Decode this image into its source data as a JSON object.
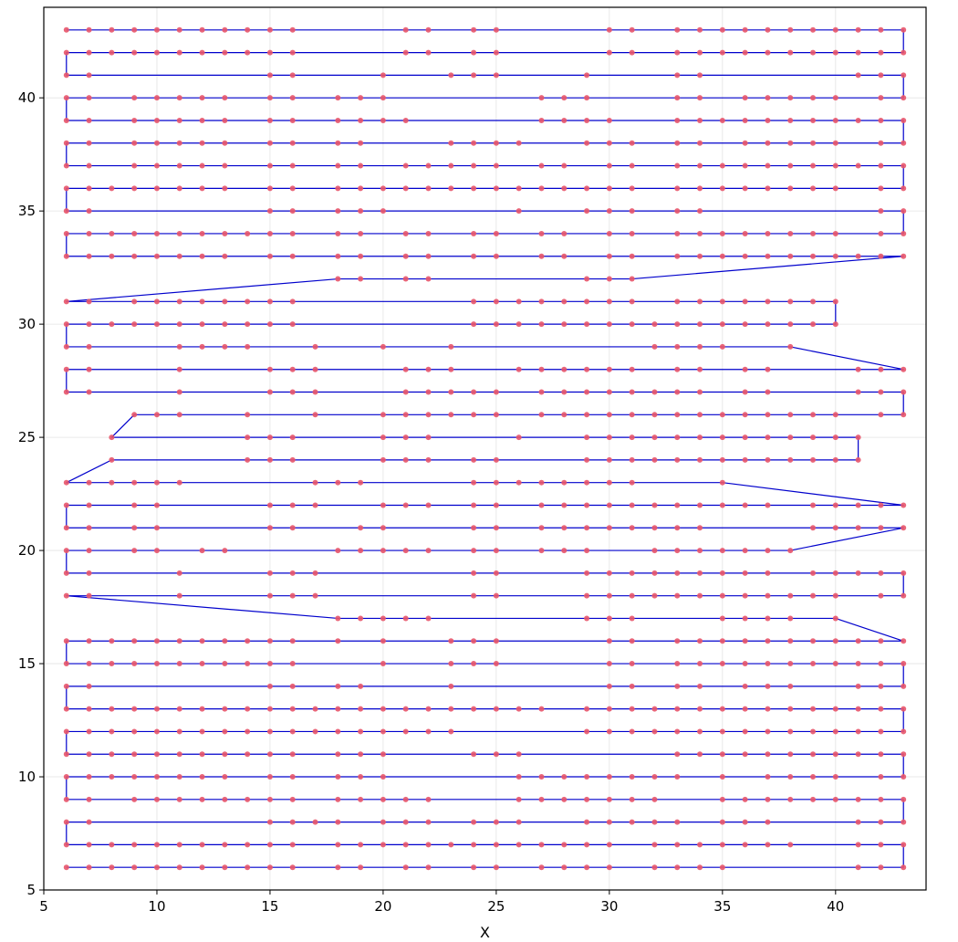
{
  "chart_data": {
    "type": "line",
    "title": "",
    "xlabel": "X",
    "ylabel": "",
    "xlim": [
      5,
      44
    ],
    "ylim": [
      5,
      44
    ],
    "xticks": [
      5,
      10,
      15,
      20,
      25,
      30,
      35,
      40
    ],
    "yticks": [
      5,
      10,
      15,
      20,
      25,
      30,
      35,
      40
    ],
    "grid": true,
    "legend": "none",
    "line_color": "#0000cc",
    "marker_color": "#e8556a",
    "rows": [
      {
        "y": 6,
        "x": [
          6,
          7,
          8,
          9,
          10,
          11,
          12,
          13,
          14,
          15,
          16,
          18,
          19,
          21,
          22,
          24,
          25,
          27,
          28,
          29,
          30,
          32,
          33,
          34,
          35,
          41,
          42,
          43
        ]
      },
      {
        "y": 7,
        "x": [
          43,
          42,
          41,
          38,
          37,
          36,
          35,
          34,
          33,
          32,
          30,
          29,
          28,
          27,
          26,
          25,
          24,
          23,
          22,
          21,
          20,
          19,
          18,
          16,
          15,
          14,
          13,
          12,
          11,
          10,
          9,
          8,
          7,
          6
        ]
      },
      {
        "y": 8,
        "x": [
          6,
          7,
          15,
          16,
          17,
          18,
          20,
          21,
          22,
          24,
          25,
          26,
          29,
          30,
          31,
          32,
          33,
          35,
          36,
          37,
          41,
          42,
          43
        ]
      },
      {
        "y": 9,
        "x": [
          43,
          42,
          41,
          40,
          39,
          38,
          37,
          36,
          35,
          32,
          31,
          30,
          29,
          28,
          27,
          26,
          22,
          21,
          20,
          19,
          18,
          16,
          15,
          14,
          13,
          12,
          11,
          10,
          9,
          7,
          6
        ]
      },
      {
        "y": 10,
        "x": [
          6,
          7,
          8,
          9,
          10,
          11,
          12,
          13,
          15,
          16,
          18,
          19,
          20,
          26,
          27,
          28,
          29,
          30,
          31,
          32,
          33,
          35,
          37,
          38,
          39,
          40,
          42,
          43
        ]
      },
      {
        "y": 11,
        "x": [
          43,
          42,
          41,
          40,
          39,
          38,
          37,
          36,
          35,
          34,
          33,
          26,
          25,
          24,
          20,
          19,
          18,
          16,
          15,
          14,
          13,
          12,
          11,
          10,
          9,
          8,
          7,
          6
        ]
      },
      {
        "y": 12,
        "x": [
          6,
          7,
          8,
          9,
          10,
          11,
          12,
          13,
          14,
          15,
          16,
          17,
          18,
          19,
          20,
          21,
          22,
          23,
          29,
          30,
          31,
          32,
          33,
          34,
          35,
          36,
          37,
          38,
          39,
          40,
          41,
          42,
          43
        ]
      },
      {
        "y": 13,
        "x": [
          43,
          42,
          41,
          40,
          39,
          38,
          37,
          36,
          35,
          34,
          33,
          32,
          31,
          30,
          29,
          27,
          26,
          25,
          24,
          23,
          22,
          21,
          20,
          19,
          18,
          17,
          16,
          15,
          14,
          13,
          12,
          11,
          10,
          9,
          8,
          7,
          6
        ]
      },
      {
        "y": 14,
        "x": [
          6,
          7,
          15,
          16,
          18,
          19,
          23,
          30,
          31,
          33,
          34,
          36,
          37,
          38,
          41,
          42,
          43
        ]
      },
      {
        "y": 15,
        "x": [
          43,
          42,
          41,
          40,
          39,
          38,
          37,
          36,
          35,
          34,
          33,
          31,
          30,
          25,
          24,
          23,
          20,
          16,
          15,
          14,
          13,
          12,
          11,
          10,
          9,
          8,
          7,
          6
        ]
      },
      {
        "y": 16,
        "x": [
          6,
          7,
          8,
          9,
          10,
          11,
          12,
          13,
          14,
          15,
          16,
          18,
          20,
          23,
          24,
          25,
          30,
          31,
          33,
          34,
          35,
          36,
          37,
          38,
          39,
          40,
          41,
          42,
          43
        ]
      },
      {
        "y": 17,
        "x": [
          40,
          38,
          37,
          36,
          35,
          31,
          30,
          29,
          22,
          21,
          20,
          19,
          18
        ]
      },
      {
        "y": 18,
        "x": [
          6,
          7,
          11,
          15,
          16,
          17,
          24,
          25,
          29,
          30,
          31,
          32,
          33,
          34,
          35,
          36,
          37,
          38,
          39,
          40,
          42,
          43
        ]
      },
      {
        "y": 19,
        "x": [
          43,
          42,
          41,
          40,
          39,
          37,
          36,
          35,
          34,
          33,
          32,
          31,
          30,
          29,
          25,
          24,
          17,
          16,
          15,
          11,
          7,
          6
        ]
      },
      {
        "y": 20,
        "x": [
          6,
          7,
          9,
          10,
          12,
          13,
          18,
          19,
          20,
          21,
          22,
          24,
          25,
          27,
          28,
          29,
          32,
          33,
          34,
          35,
          36,
          37,
          38
        ]
      },
      {
        "y": 21,
        "x": [
          43,
          42,
          41,
          40,
          39,
          34,
          33,
          32,
          31,
          30,
          29,
          28,
          27,
          25,
          24,
          20,
          19,
          16,
          15,
          10,
          9,
          7,
          6
        ]
      },
      {
        "y": 22,
        "x": [
          6,
          7,
          9,
          10,
          15,
          16,
          17,
          20,
          21,
          22,
          24,
          25,
          27,
          28,
          29,
          30,
          31,
          32,
          33,
          34,
          35,
          36,
          37,
          39,
          40,
          41,
          42,
          43
        ]
      },
      {
        "y": 23,
        "x": [
          35,
          31,
          30,
          29,
          28,
          27,
          26,
          25,
          24,
          19,
          18,
          17,
          11,
          10,
          9,
          8,
          7,
          6
        ]
      },
      {
        "y": 24,
        "x": [
          8,
          14,
          15,
          16,
          20,
          21,
          22,
          24,
          25,
          29,
          30,
          31,
          32,
          33,
          34,
          35,
          36,
          37,
          38,
          39,
          40,
          41
        ]
      },
      {
        "y": 25,
        "x": [
          41,
          40,
          39,
          38,
          37,
          36,
          35,
          34,
          33,
          32,
          31,
          30,
          29,
          26,
          22,
          21,
          20,
          16,
          15,
          14,
          8
        ]
      },
      {
        "y": 26,
        "x": [
          9,
          10,
          11,
          14,
          17,
          20,
          21,
          22,
          23,
          24,
          25,
          27,
          28,
          29,
          30,
          31,
          32,
          33,
          34,
          35,
          36,
          37,
          38,
          39,
          40,
          42,
          43
        ]
      },
      {
        "y": 27,
        "x": [
          43,
          42,
          41,
          37,
          36,
          34,
          33,
          32,
          31,
          30,
          29,
          28,
          27,
          25,
          24,
          23,
          22,
          21,
          17,
          16,
          15,
          11,
          7,
          6
        ]
      },
      {
        "y": 28,
        "x": [
          6,
          7,
          11,
          15,
          16,
          17,
          21,
          22,
          23,
          26,
          27,
          28,
          29,
          30,
          31,
          33,
          34,
          36,
          37,
          41,
          42,
          43
        ]
      },
      {
        "y": 29,
        "x": [
          38,
          35,
          34,
          33,
          32,
          23,
          20,
          17,
          14,
          13,
          12,
          11,
          7,
          6
        ]
      },
      {
        "y": 30,
        "x": [
          6,
          7,
          8,
          9,
          10,
          11,
          12,
          13,
          14,
          15,
          16,
          24,
          25,
          26,
          27,
          28,
          29,
          30,
          31,
          32,
          33,
          34,
          35,
          36,
          37,
          38,
          39,
          40
        ]
      },
      {
        "y": 31,
        "x": [
          40,
          39,
          38,
          37,
          36,
          35,
          34,
          33,
          31,
          30,
          29,
          28,
          27,
          26,
          25,
          24,
          16,
          15,
          14,
          13,
          12,
          11,
          10,
          9,
          7,
          6
        ]
      },
      {
        "y": 32,
        "x": [
          18,
          19,
          21,
          22,
          29,
          30,
          31
        ]
      },
      {
        "y": 33,
        "x": [
          43,
          42,
          41,
          40,
          39,
          38,
          37,
          36,
          35,
          34,
          33,
          31,
          30,
          28,
          27,
          25,
          24,
          22,
          21,
          19,
          18,
          16,
          15,
          13,
          12,
          11,
          10,
          9,
          8,
          7,
          6
        ]
      },
      {
        "y": 34,
        "x": [
          6,
          7,
          8,
          9,
          10,
          11,
          12,
          13,
          14,
          15,
          16,
          18,
          19,
          21,
          22,
          24,
          25,
          27,
          28,
          30,
          31,
          33,
          34,
          35,
          36,
          37,
          38,
          39,
          40,
          42,
          43
        ]
      },
      {
        "y": 35,
        "x": [
          43,
          42,
          34,
          33,
          31,
          30,
          29,
          26,
          20,
          19,
          18,
          16,
          15,
          7,
          6
        ]
      },
      {
        "y": 36,
        "x": [
          6,
          7,
          8,
          9,
          10,
          11,
          12,
          13,
          15,
          16,
          18,
          19,
          20,
          21,
          22,
          23,
          24,
          25,
          26,
          27,
          28,
          29,
          30,
          31,
          33,
          34,
          35,
          36,
          37,
          38,
          39,
          40,
          42,
          43
        ]
      },
      {
        "y": 37,
        "x": [
          43,
          42,
          41,
          40,
          39,
          38,
          37,
          36,
          35,
          34,
          33,
          31,
          30,
          28,
          27,
          25,
          24,
          23,
          22,
          21,
          19,
          18,
          16,
          15,
          13,
          12,
          11,
          10,
          9,
          7,
          6
        ]
      },
      {
        "y": 38,
        "x": [
          6,
          7,
          9,
          10,
          11,
          12,
          13,
          15,
          16,
          18,
          19,
          23,
          24,
          25,
          26,
          29,
          30,
          31,
          33,
          34,
          36,
          37,
          38,
          39,
          40,
          42,
          43
        ]
      },
      {
        "y": 39,
        "x": [
          43,
          42,
          41,
          40,
          39,
          38,
          37,
          36,
          35,
          34,
          33,
          30,
          29,
          28,
          27,
          21,
          20,
          19,
          18,
          16,
          15,
          13,
          12,
          11,
          10,
          9,
          7,
          6
        ]
      },
      {
        "y": 40,
        "x": [
          6,
          7,
          9,
          10,
          11,
          12,
          13,
          15,
          16,
          18,
          19,
          20,
          27,
          28,
          29,
          33,
          34,
          36,
          37,
          38,
          39,
          40,
          42,
          43
        ]
      },
      {
        "y": 41,
        "x": [
          43,
          42,
          41,
          34,
          33,
          29,
          25,
          24,
          23,
          20,
          16,
          15,
          7,
          6
        ]
      },
      {
        "y": 42,
        "x": [
          6,
          7,
          8,
          9,
          10,
          11,
          12,
          13,
          14,
          15,
          16,
          21,
          22,
          24,
          25,
          30,
          31,
          33,
          34,
          35,
          36,
          37,
          38,
          39,
          40,
          41,
          42,
          43
        ]
      },
      {
        "y": 43,
        "x": [
          43,
          42,
          41,
          40,
          39,
          38,
          37,
          36,
          35,
          34,
          33,
          31,
          30,
          25,
          24,
          22,
          21,
          16,
          15,
          14,
          13,
          12,
          11,
          10,
          9,
          8,
          7,
          6
        ]
      }
    ]
  }
}
